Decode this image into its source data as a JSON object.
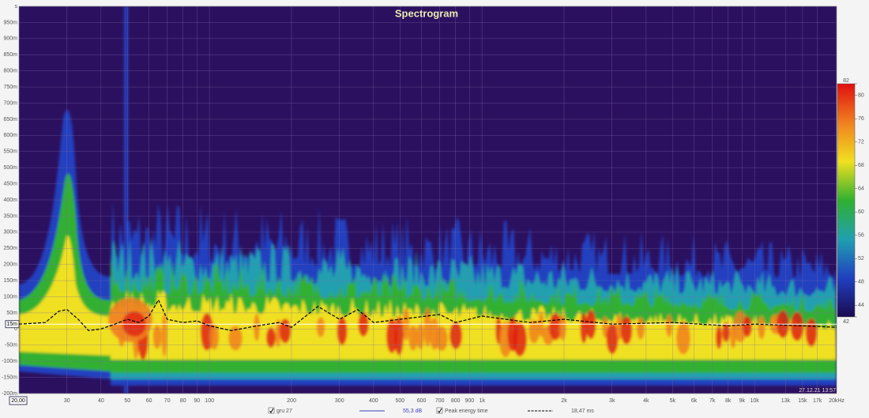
{
  "chart_data": {
    "type": "line",
    "title": "Spectrogram",
    "x_scale": "log",
    "xlim": [
      20,
      20000
    ],
    "ylim": [
      -200,
      1000
    ],
    "xticks": [
      30,
      40,
      50,
      60,
      70,
      80,
      90,
      100,
      200,
      300,
      400,
      500,
      600,
      700,
      800,
      900,
      {
        "value": 1000,
        "label": "1k"
      },
      {
        "value": 2000,
        "label": "2k"
      },
      {
        "value": 3000,
        "label": "3k"
      },
      {
        "value": 4000,
        "label": "4k"
      },
      {
        "value": 5000,
        "label": "5k"
      },
      {
        "value": 6000,
        "label": "6k"
      },
      {
        "value": 7000,
        "label": "7k"
      },
      {
        "value": 8000,
        "label": "8k"
      },
      {
        "value": 9000,
        "label": "9k"
      },
      {
        "value": 10000,
        "label": "10k"
      },
      {
        "value": 13000,
        "label": "13k"
      },
      {
        "value": 15000,
        "label": "15k"
      },
      {
        "value": 17000,
        "label": "17k"
      },
      {
        "value": 20000,
        "label": "20kHz"
      }
    ],
    "yticks": [
      {
        "value": -200,
        "label": "-200m"
      },
      {
        "value": -150,
        "label": "-150m"
      },
      {
        "value": -100,
        "label": "-100m"
      },
      {
        "value": -50,
        "label": "-50m"
      },
      0,
      {
        "value": 50,
        "label": "50m"
      },
      {
        "value": 100,
        "label": "100m"
      },
      {
        "value": 150,
        "label": "150m"
      },
      {
        "value": 200,
        "label": "200m"
      },
      {
        "value": 250,
        "label": "250m"
      },
      {
        "value": 300,
        "label": "300m"
      },
      {
        "value": 350,
        "label": "350m"
      },
      {
        "value": 400,
        "label": "400m"
      },
      {
        "value": 450,
        "label": "450m"
      },
      {
        "value": 500,
        "label": "500m"
      },
      {
        "value": 550,
        "label": "550m"
      },
      {
        "value": 600,
        "label": "600m"
      },
      {
        "value": 650,
        "label": "650m"
      },
      {
        "value": 700,
        "label": "700m"
      },
      {
        "value": 750,
        "label": "750m"
      },
      {
        "value": 800,
        "label": "800m"
      },
      {
        "value": 850,
        "label": "850m"
      },
      {
        "value": 900,
        "label": "900m"
      },
      {
        "value": 950,
        "label": "950m"
      },
      {
        "value": 1000,
        "label": "s"
      }
    ],
    "grid": true,
    "x_cursor": {
      "value": 20,
      "label": "20,00"
    },
    "y_cursor": {
      "value": 15,
      "label": "15m"
    },
    "series": [
      {
        "name": "Peak energy time",
        "color": "#000000",
        "dashed": true,
        "x": [
          20,
          25,
          28,
          30,
          33,
          36,
          40,
          45,
          50,
          55,
          60,
          65,
          70,
          80,
          90,
          100,
          120,
          150,
          180,
          200,
          250,
          300,
          350,
          400,
          500,
          700,
          800,
          1000,
          1500,
          2000,
          3000,
          5000,
          8000,
          10000,
          15000,
          20000
        ],
        "values": [
          15,
          20,
          55,
          60,
          30,
          -5,
          0,
          15,
          30,
          20,
          40,
          90,
          30,
          20,
          25,
          10,
          -5,
          10,
          20,
          5,
          70,
          30,
          60,
          20,
          30,
          45,
          20,
          40,
          20,
          30,
          15,
          20,
          10,
          15,
          10,
          5
        ]
      }
    ],
    "colorscale": {
      "range": [
        42,
        82
      ],
      "ticks": [
        82,
        80,
        76,
        72,
        68,
        64,
        60,
        56,
        52,
        48,
        44,
        42
      ],
      "colors": [
        "#1a0a50",
        "#2040c0",
        "#20a0b0",
        "#30b030",
        "#f0e020",
        "#f08020",
        "#e01010"
      ]
    },
    "legend": [
      {
        "checked": true,
        "name": "gru 27",
        "color": "#4040c0",
        "value_label": "55,3 dB"
      },
      {
        "checked": true,
        "name": "Peak energy time",
        "color": "#000000",
        "dashed": true,
        "value_label": "18,47 ms"
      }
    ],
    "timestamp": "27.12.21 13:57"
  }
}
